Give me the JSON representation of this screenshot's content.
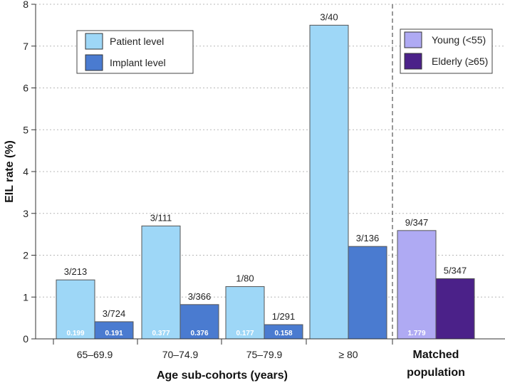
{
  "chart_data": {
    "type": "bar",
    "ylabel": "EIL rate (%)",
    "xlabel": "Age sub-cohorts (years)",
    "ylim": [
      0,
      8
    ],
    "yticks": [
      0,
      1,
      2,
      3,
      4,
      5,
      6,
      7,
      8
    ],
    "grid": "horizontal dotted",
    "categories": [
      "65–69.9",
      "70–74.9",
      "75–79.9",
      "≥ 80"
    ],
    "series": [
      {
        "name": "Patient level",
        "color": "#9ED7F7",
        "values": [
          1.41,
          2.7,
          1.25,
          7.5
        ],
        "labels": [
          "3/213",
          "3/111",
          "1/80",
          "3/40"
        ],
        "inner_labels": [
          "0.199",
          "0.377",
          "0.177",
          ""
        ]
      },
      {
        "name": "Implant level",
        "color": "#4A7BD0",
        "values": [
          0.41,
          0.82,
          0.34,
          2.21
        ],
        "labels": [
          "3/724",
          "3/366",
          "1/291",
          "3/136"
        ],
        "inner_labels": [
          "0.191",
          "0.376",
          "0.158",
          ""
        ]
      }
    ],
    "matched_group": {
      "category": "Matched population",
      "series": [
        {
          "name": "Young (<55)",
          "color": "#AFAAF3",
          "value": 2.59,
          "label": "9/347",
          "inner_label": "1.779"
        },
        {
          "name": "Elderly (≥65)",
          "color": "#4B2189",
          "value": 1.44,
          "label": "5/347",
          "inner_label": ""
        }
      ]
    },
    "legend_left": {
      "position": "top-left",
      "items": [
        "Patient level",
        "Implant level"
      ]
    },
    "legend_right": {
      "position": "top-right",
      "items": [
        "Young (<55)",
        "Elderly (≥65)"
      ]
    }
  }
}
